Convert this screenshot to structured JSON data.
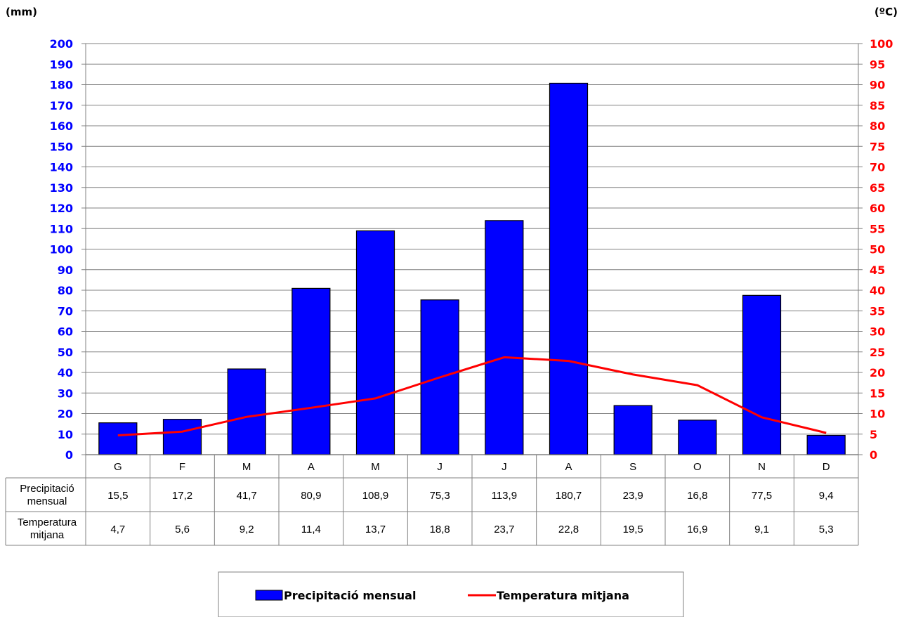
{
  "chart_data": {
    "type": "bar",
    "categories": [
      "G",
      "F",
      "M",
      "A",
      "M",
      "J",
      "J",
      "A",
      "S",
      "O",
      "N",
      "D"
    ],
    "left_axis_unit": "(mm)",
    "right_axis_unit": "(ºC)",
    "ylim_left": [
      0,
      200
    ],
    "ylim_right": [
      0,
      100
    ],
    "left_ticks": [
      "0",
      "10",
      "20",
      "30",
      "40",
      "50",
      "60",
      "70",
      "80",
      "90",
      "100",
      "110",
      "120",
      "130",
      "140",
      "150",
      "160",
      "170",
      "180",
      "190",
      "200"
    ],
    "right_ticks": [
      "0",
      "5",
      "10",
      "15",
      "20",
      "25",
      "30",
      "35",
      "40",
      "45",
      "50",
      "55",
      "60",
      "65",
      "70",
      "75",
      "80",
      "85",
      "90",
      "95",
      "100"
    ],
    "grid": true,
    "legend_position": "bottom",
    "series": [
      {
        "name": "Precipitació mensual",
        "kind": "bar",
        "axis": "left",
        "color": "#0000FF",
        "values": [
          15.5,
          17.2,
          41.7,
          80.9,
          108.9,
          75.3,
          113.9,
          180.7,
          23.9,
          16.8,
          77.5,
          9.4
        ]
      },
      {
        "name": "Temperatura mitjana",
        "kind": "line",
        "axis": "right",
        "color": "#FF0000",
        "values": [
          4.7,
          5.6,
          9.2,
          11.4,
          13.7,
          18.8,
          23.7,
          22.8,
          19.5,
          16.9,
          9.1,
          5.3
        ]
      }
    ],
    "table": {
      "rows": [
        {
          "header": [
            "Precipitació",
            "mensual"
          ],
          "cells": [
            "15,5",
            "17,2",
            "41,7",
            "80,9",
            "108,9",
            "75,3",
            "113,9",
            "180,7",
            "23,9",
            "16,8",
            "77,5",
            "9,4"
          ]
        },
        {
          "header": [
            "Temperatura",
            "mitjana"
          ],
          "cells": [
            "4,7",
            "5,6",
            "9,2",
            "11,4",
            "13,7",
            "18,8",
            "23,7",
            "22,8",
            "19,5",
            "16,9",
            "9,1",
            "5,3"
          ]
        }
      ]
    },
    "colors": {
      "left_axis": "#0000FF",
      "right_axis": "#FF0000",
      "grid": "#808080"
    }
  }
}
